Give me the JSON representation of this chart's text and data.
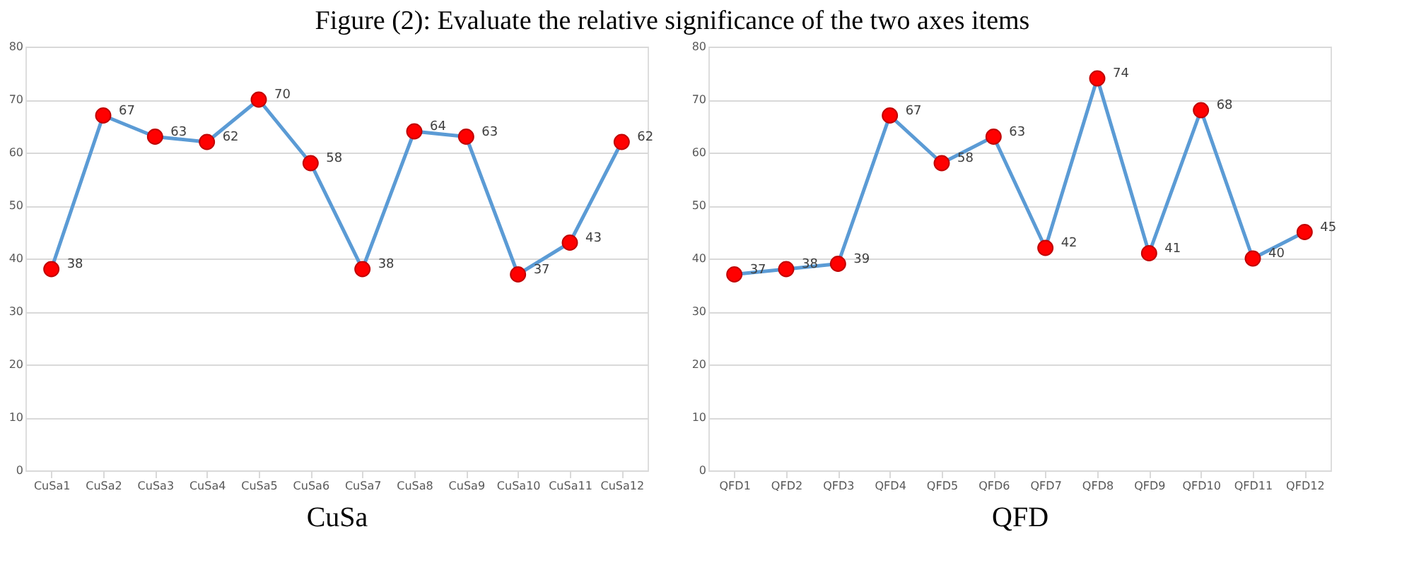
{
  "chart_data": [
    {
      "type": "line",
      "title": "Figure (2):  Evaluate the relative significance of the two axes items",
      "xlabel": "CuSa",
      "categories": [
        "CuSa1",
        "CuSa2",
        "CuSa3",
        "CuSa4",
        "CuSa5",
        "CuSa6",
        "CuSa7",
        "CuSa8",
        "CuSa9",
        "CuSa10",
        "CuSa11",
        "CuSa12"
      ],
      "series": [
        {
          "color": "#5b9bd5",
          "colors": [
            "#ff0000",
            "#ff0000",
            "#ff0000",
            "#ff0000",
            "#ff0000",
            "#ff0000",
            "#ff0000",
            "#ff0000",
            "#ff0000",
            "#ff0000",
            "#ff0000",
            "#ff0000"
          ],
          "values": [
            38,
            67,
            63,
            62,
            70,
            58,
            38,
            64,
            63,
            37,
            43,
            62
          ]
        }
      ],
      "ylim": [
        0,
        80
      ],
      "yticks": [
        0,
        10,
        20,
        30,
        40,
        50,
        60,
        70,
        80
      ],
      "grid": "y",
      "marker": "circle",
      "line_style": "solid",
      "data_labels": true
    },
    {
      "type": "line",
      "xlabel": "QFD",
      "categories": [
        "QFD1",
        "QFD2",
        "QFD3",
        "QFD4",
        "QFD5",
        "QFD6",
        "QFD7",
        "QFD8",
        "QFD9",
        "QFD10",
        "QFD11",
        "QFD12"
      ],
      "series": [
        {
          "color": "#5b9bd5",
          "colors": [
            "#ff0000",
            "#ff0000",
            "#ff0000",
            "#ff0000",
            "#ff0000",
            "#ff0000",
            "#ff0000",
            "#ff0000",
            "#ff0000",
            "#ff0000",
            "#ff0000",
            "#ff0000"
          ],
          "values": [
            37,
            38,
            39,
            67,
            58,
            63,
            42,
            74,
            41,
            68,
            40,
            45
          ]
        }
      ],
      "ylim": [
        0,
        80
      ],
      "yticks": [
        0,
        10,
        20,
        30,
        40,
        50,
        60,
        70,
        80
      ],
      "grid": "y",
      "marker": "circle",
      "line_style": "solid",
      "data_labels": true
    }
  ]
}
